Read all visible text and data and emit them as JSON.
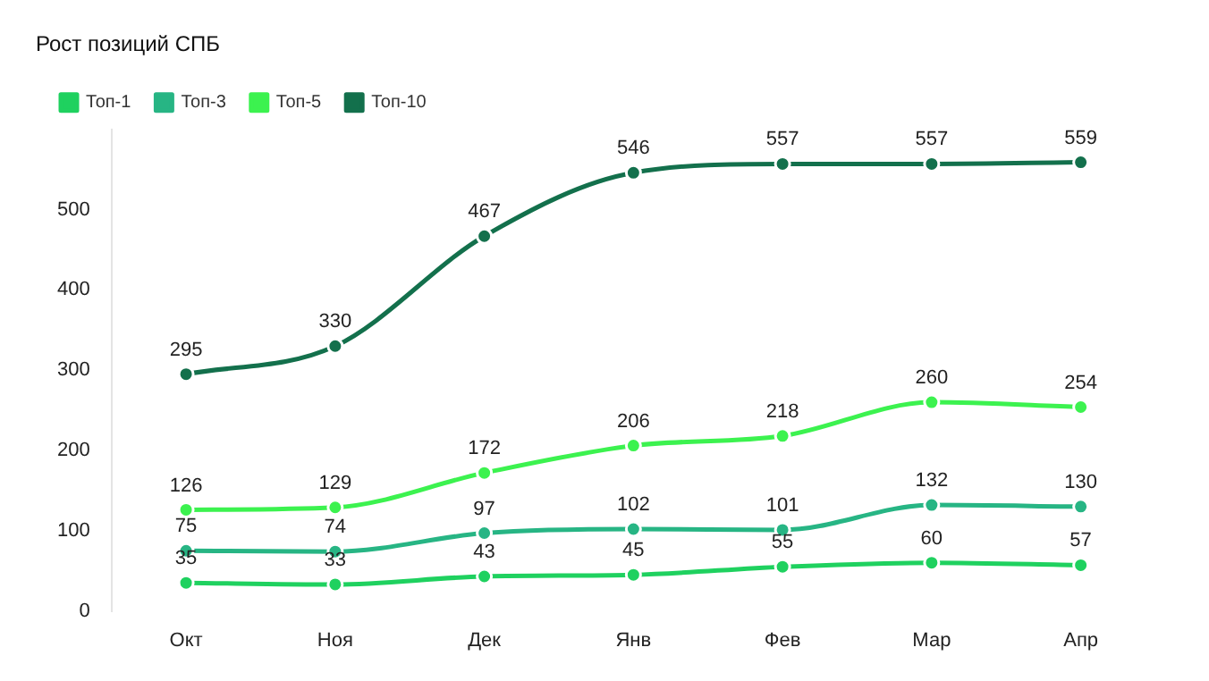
{
  "chart_data": {
    "type": "line",
    "title": "Рост позиций СПБ",
    "categories": [
      "Окт",
      "Ноя",
      "Дек",
      "Янв",
      "Фев",
      "Мар",
      "Апр"
    ],
    "series": [
      {
        "name": "Топ-1",
        "color": "#1fd15f",
        "values": [
          35,
          33,
          43,
          45,
          55,
          60,
          57
        ]
      },
      {
        "name": "Топ-3",
        "color": "#27b584",
        "values": [
          75,
          74,
          97,
          102,
          101,
          132,
          130
        ]
      },
      {
        "name": "Топ-5",
        "color": "#3cf24f",
        "values": [
          126,
          129,
          172,
          206,
          218,
          260,
          254
        ]
      },
      {
        "name": "Топ-10",
        "color": "#13704c",
        "values": [
          295,
          330,
          467,
          546,
          557,
          557,
          559
        ]
      }
    ],
    "ylim": [
      0,
      600
    ],
    "yticks": [
      0,
      100,
      200,
      300,
      400,
      500
    ],
    "grid": false,
    "legend": "top left",
    "marker": "circle",
    "line_style": "solid",
    "data_labels": true
  }
}
